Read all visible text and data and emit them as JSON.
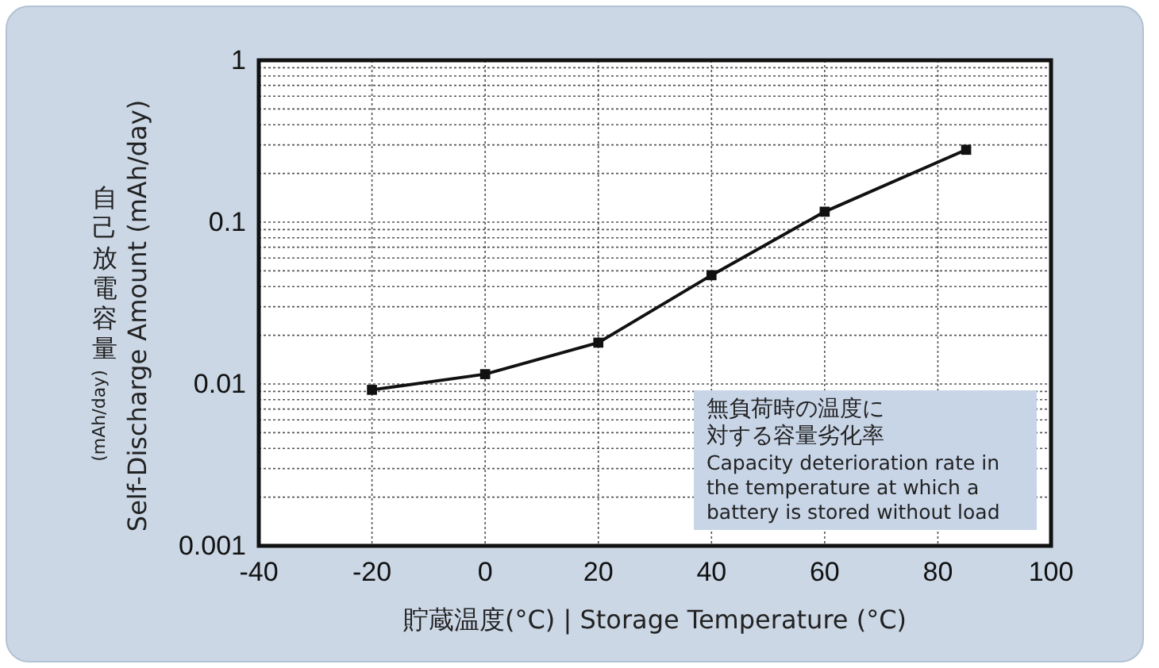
{
  "chart_data": {
    "type": "line",
    "xlabel": "貯蔵温度(°C) | Storage Temperature (°C)",
    "ylabel": "Self-Discharge Amount (mAh/day)",
    "annotations": [
      "自己放電容量",
      "(mAh/day)",
      "無負荷時の温度に対する容量劣化率",
      "Capacity deterioration rate in the temperature at which a battery is stored without load"
    ],
    "x": [
      -20,
      0,
      20,
      40,
      60,
      85
    ],
    "series": [
      {
        "color": "#111111",
        "values": [
          0.0092,
          0.0115,
          0.018,
          0.047,
          0.116,
          0.28
        ]
      }
    ],
    "xlim": [
      -40,
      100
    ],
    "xticks": [
      -40,
      -20,
      0,
      20,
      40,
      60,
      80,
      100
    ],
    "ylim": [
      0.001,
      1
    ],
    "yticks": [
      0.001,
      0.01,
      0.1,
      1
    ],
    "log": true,
    "grid": true,
    "marker": "square",
    "line_style": "solid"
  }
}
